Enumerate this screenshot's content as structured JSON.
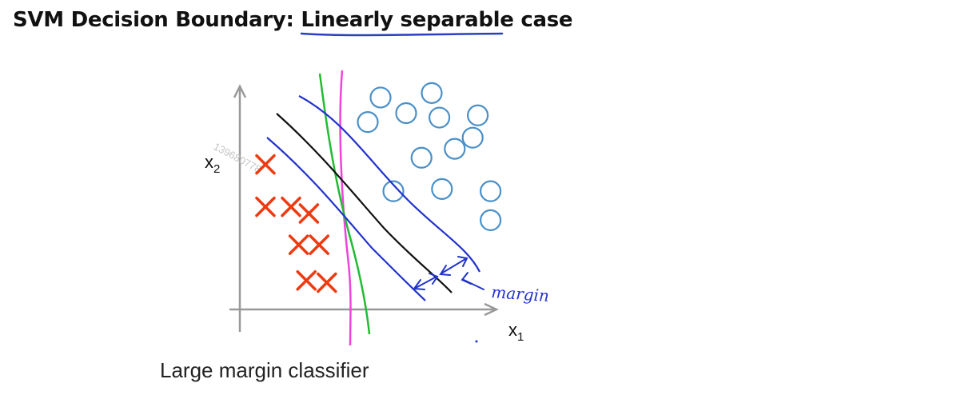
{
  "title": {
    "prefix": "SVM Decision Boundary: ",
    "underlined": "Linearly separable",
    "suffix": " case"
  },
  "axes": {
    "x_label": "x",
    "x_subscript": "1",
    "y_label": "x",
    "y_subscript": "2"
  },
  "annotation": {
    "margin_label": "margin"
  },
  "watermark": "139680778",
  "caption": "Large margin classifier",
  "colors": {
    "positive_circle": "#4a90c8",
    "negative_cross": "#ee3a10",
    "decision_boundary": "#111111",
    "margin_lines": "#2233cc",
    "green_boundary": "#22bb33",
    "magenta_boundary": "#ee44dd",
    "axis": "#999999",
    "underline": "#2a3fbf"
  },
  "points": {
    "circles": [
      {
        "x": 0.55,
        "y": 0.95
      },
      {
        "x": 0.75,
        "y": 0.97
      },
      {
        "x": 0.93,
        "y": 0.87
      },
      {
        "x": 0.5,
        "y": 0.84
      },
      {
        "x": 0.65,
        "y": 0.88
      },
      {
        "x": 0.78,
        "y": 0.86
      },
      {
        "x": 0.91,
        "y": 0.77
      },
      {
        "x": 0.71,
        "y": 0.68
      },
      {
        "x": 0.84,
        "y": 0.72
      },
      {
        "x": 0.6,
        "y": 0.53
      },
      {
        "x": 0.79,
        "y": 0.54
      },
      {
        "x": 0.98,
        "y": 0.53
      },
      {
        "x": 0.98,
        "y": 0.4
      }
    ],
    "crosses": [
      {
        "x": 0.1,
        "y": 0.65
      },
      {
        "x": 0.1,
        "y": 0.46
      },
      {
        "x": 0.2,
        "y": 0.46
      },
      {
        "x": 0.27,
        "y": 0.43
      },
      {
        "x": 0.23,
        "y": 0.29
      },
      {
        "x": 0.31,
        "y": 0.29
      },
      {
        "x": 0.26,
        "y": 0.13
      },
      {
        "x": 0.34,
        "y": 0.12
      }
    ]
  }
}
